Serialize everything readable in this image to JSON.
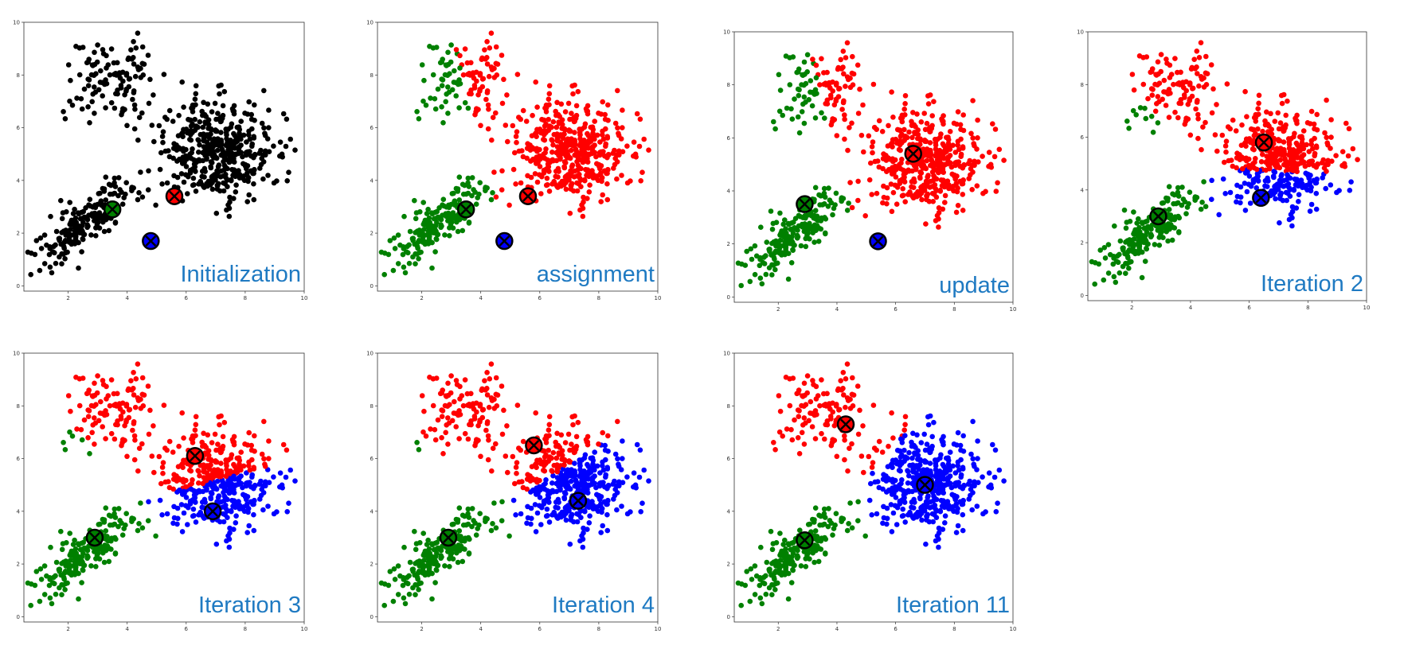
{
  "colors": {
    "background": "#ffffff",
    "caption": "#1f7ac2",
    "axis": "#333333",
    "unassigned": "#000000",
    "cluster_a": "#ff0000",
    "cluster_b": "#008000",
    "cluster_c": "#0000ff",
    "centroid_marker": "x-in-circle"
  },
  "chart_data": [
    {
      "type": "scatter",
      "caption": "Initialization",
      "xlim": [
        0.5,
        10
      ],
      "ylim": [
        -0.2,
        10
      ],
      "x_ticks": [
        "2",
        "4",
        "6",
        "8",
        "10"
      ],
      "y_ticks": [
        "0",
        "2",
        "4",
        "6",
        "8",
        "10"
      ],
      "assignment": "none",
      "centroids": [
        {
          "x": 5.6,
          "y": 3.4,
          "color": "#ff0000"
        },
        {
          "x": 3.5,
          "y": 2.9,
          "color": "#008000"
        },
        {
          "x": 4.8,
          "y": 1.7,
          "color": "#0000ff"
        }
      ]
    },
    {
      "type": "scatter",
      "caption": "assignment",
      "xlim": [
        0.5,
        10
      ],
      "ylim": [
        -0.2,
        10
      ],
      "x_ticks": [
        "2",
        "4",
        "6",
        "8",
        "10"
      ],
      "y_ticks": [
        "0",
        "2",
        "4",
        "6",
        "8",
        "10"
      ],
      "assignment": "nearest",
      "centroids": [
        {
          "x": 5.6,
          "y": 3.4,
          "color": "#ff0000"
        },
        {
          "x": 3.5,
          "y": 2.9,
          "color": "#008000"
        },
        {
          "x": 4.8,
          "y": 1.7,
          "color": "#0000ff"
        }
      ]
    },
    {
      "type": "scatter",
      "caption": "update",
      "xlim": [
        0.5,
        10
      ],
      "ylim": [
        -0.2,
        10
      ],
      "x_ticks": [
        "2",
        "4",
        "6",
        "8",
        "10"
      ],
      "y_ticks": [
        "0",
        "2",
        "4",
        "6",
        "8",
        "10"
      ],
      "assignment": "previous",
      "centroids": [
        {
          "x": 6.6,
          "y": 5.4,
          "color": "#ff0000"
        },
        {
          "x": 2.9,
          "y": 3.5,
          "color": "#008000"
        },
        {
          "x": 5.4,
          "y": 2.1,
          "color": "#0000ff"
        }
      ]
    },
    {
      "type": "scatter",
      "caption": "Iteration 2",
      "xlim": [
        0.5,
        10
      ],
      "ylim": [
        -0.2,
        10
      ],
      "x_ticks": [
        "2",
        "4",
        "6",
        "8",
        "10"
      ],
      "y_ticks": [
        "0",
        "2",
        "4",
        "6",
        "8",
        "10"
      ],
      "assignment": "nearest",
      "centroids": [
        {
          "x": 6.5,
          "y": 5.8,
          "color": "#ff0000"
        },
        {
          "x": 2.9,
          "y": 3.0,
          "color": "#008000"
        },
        {
          "x": 6.4,
          "y": 3.7,
          "color": "#0000ff"
        }
      ]
    },
    {
      "type": "scatter",
      "caption": "Iteration 3",
      "xlim": [
        0.5,
        10
      ],
      "ylim": [
        -0.2,
        10
      ],
      "x_ticks": [
        "2",
        "4",
        "6",
        "8",
        "10"
      ],
      "y_ticks": [
        "0",
        "2",
        "4",
        "6",
        "8",
        "10"
      ],
      "assignment": "nearest",
      "centroids": [
        {
          "x": 6.3,
          "y": 6.1,
          "color": "#ff0000"
        },
        {
          "x": 2.9,
          "y": 3.0,
          "color": "#008000"
        },
        {
          "x": 6.9,
          "y": 4.0,
          "color": "#0000ff"
        }
      ]
    },
    {
      "type": "scatter",
      "caption": "Iteration 4",
      "xlim": [
        0.5,
        10
      ],
      "ylim": [
        -0.2,
        10
      ],
      "x_ticks": [
        "2",
        "4",
        "6",
        "8",
        "10"
      ],
      "y_ticks": [
        "0",
        "2",
        "4",
        "6",
        "8",
        "10"
      ],
      "assignment": "nearest",
      "centroids": [
        {
          "x": 5.8,
          "y": 6.5,
          "color": "#ff0000"
        },
        {
          "x": 2.9,
          "y": 3.0,
          "color": "#008000"
        },
        {
          "x": 7.3,
          "y": 4.4,
          "color": "#0000ff"
        }
      ]
    },
    {
      "type": "scatter",
      "caption": "Iteration 11",
      "xlim": [
        0.5,
        10
      ],
      "ylim": [
        -0.2,
        10
      ],
      "x_ticks": [
        "2",
        "4",
        "6",
        "8",
        "10"
      ],
      "y_ticks": [
        "0",
        "2",
        "4",
        "6",
        "8",
        "10"
      ],
      "assignment": "nearest",
      "centroids": [
        {
          "x": 4.3,
          "y": 7.3,
          "color": "#ff0000"
        },
        {
          "x": 2.9,
          "y": 2.9,
          "color": "#008000"
        },
        {
          "x": 7.0,
          "y": 5.0,
          "color": "#0000ff"
        }
      ]
    }
  ]
}
